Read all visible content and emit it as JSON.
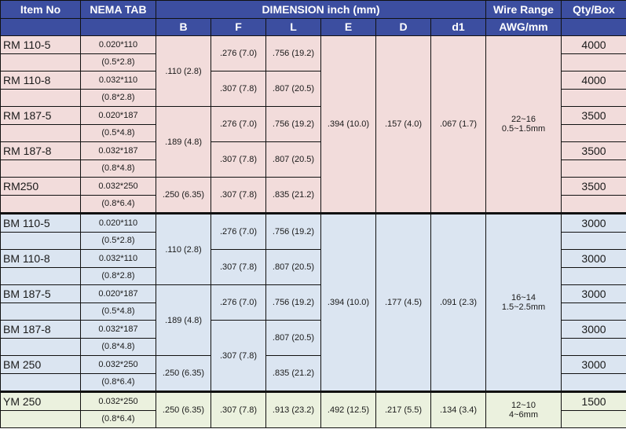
{
  "header": {
    "item_no": "Item No",
    "nema_tab": "NEMA TAB",
    "dimension": "DIMENSION inch (mm)",
    "wire_range": "Wire Range",
    "qty_box": "Qty/Box",
    "b": "B",
    "f": "F",
    "l": "L",
    "e": "E",
    "d": "D",
    "d1": "d1",
    "awg_mm": "AWG/mm"
  },
  "rm": {
    "items": [
      {
        "name": "RM 110-5",
        "tab_in": "0.020*110",
        "tab_mm": "(0.5*2.8)",
        "f": ".276 (7.0)",
        "l": ".756 (19.2)",
        "qty": "4000"
      },
      {
        "name": "RM 110-8",
        "tab_in": "0.032*110",
        "tab_mm": "(0.8*2.8)",
        "f": ".307 (7.8)",
        "l": ".807 (20.5)",
        "qty": "4000"
      },
      {
        "name": "RM 187-5",
        "tab_in": "0.020*187",
        "tab_mm": "(0.5*4.8)",
        "f": ".276 (7.0)",
        "l": ".756 (19.2)",
        "qty": "3500"
      },
      {
        "name": "RM 187-8",
        "tab_in": "0.032*187",
        "tab_mm": "(0.8*4.8)",
        "f": ".307 (7.8)",
        "l": ".807 (20.5)",
        "qty": "3500"
      },
      {
        "name": "RM250",
        "tab_in": "0.032*250",
        "tab_mm": "(0.8*6.4)",
        "f": ".307 (7.8)",
        "l": ".835 (21.2)",
        "qty": "3500"
      }
    ],
    "b_110": ".110 (2.8)",
    "b_187": ".189 (4.8)",
    "b_250": ".250 (6.35)",
    "e": ".394 (10.0)",
    "d": ".157 (4.0)",
    "d1": ".067 (1.7)",
    "awg": "22~16",
    "mm": "0.5~1.5mm"
  },
  "bm": {
    "items": [
      {
        "name": "BM 110-5",
        "tab_in": "0.020*110",
        "tab_mm": "(0.5*2.8)",
        "qty": "3000"
      },
      {
        "name": "BM 110-8",
        "tab_in": "0.032*110",
        "tab_mm": "(0.8*2.8)",
        "qty": "3000"
      },
      {
        "name": "BM 187-5",
        "tab_in": "0.020*187",
        "tab_mm": "(0.5*4.8)",
        "qty": "3000"
      },
      {
        "name": "BM 187-8",
        "tab_in": "0.032*187",
        "tab_mm": "(0.8*4.8)",
        "qty": "3000"
      },
      {
        "name": "BM 250",
        "tab_in": "0.032*250",
        "tab_mm": "(0.8*6.4)",
        "qty": "3000"
      }
    ],
    "f1": ".276 (7.0)",
    "l1": ".756 (19.2)",
    "f2": ".307 (7.8)",
    "l2": ".807 (20.5)",
    "f3": ".276 (7.0)",
    "l3": ".756 (19.2)",
    "f45": ".307 (7.8)",
    "l4": ".807 (20.5)",
    "l5": ".835 (21.2)",
    "b_110": ".110 (2.8)",
    "b_187": ".189 (4.8)",
    "b_250": ".250 (6.35)",
    "e": ".394 (10.0)",
    "d": ".177 (4.5)",
    "d1": ".091 (2.3)",
    "awg": "16~14",
    "mm": "1.5~2.5mm"
  },
  "ym": {
    "name": "YM 250",
    "tab_in": "0.032*250",
    "tab_mm": "(0.8*6.4)",
    "b": ".250 (6.35)",
    "f": ".307 (7.8)",
    "l": ".913 (23.2)",
    "e": ".492 (12.5)",
    "d": ".217 (5.5)",
    "d1": ".134 (3.4)",
    "awg": "12~10",
    "mm": "4~6mm",
    "qty": "1500"
  },
  "colors": {
    "header": "#3c4ea0",
    "rm_row": "#f2dcdb",
    "bm_row": "#dbe5f1",
    "ym_row": "#ebf1de"
  }
}
